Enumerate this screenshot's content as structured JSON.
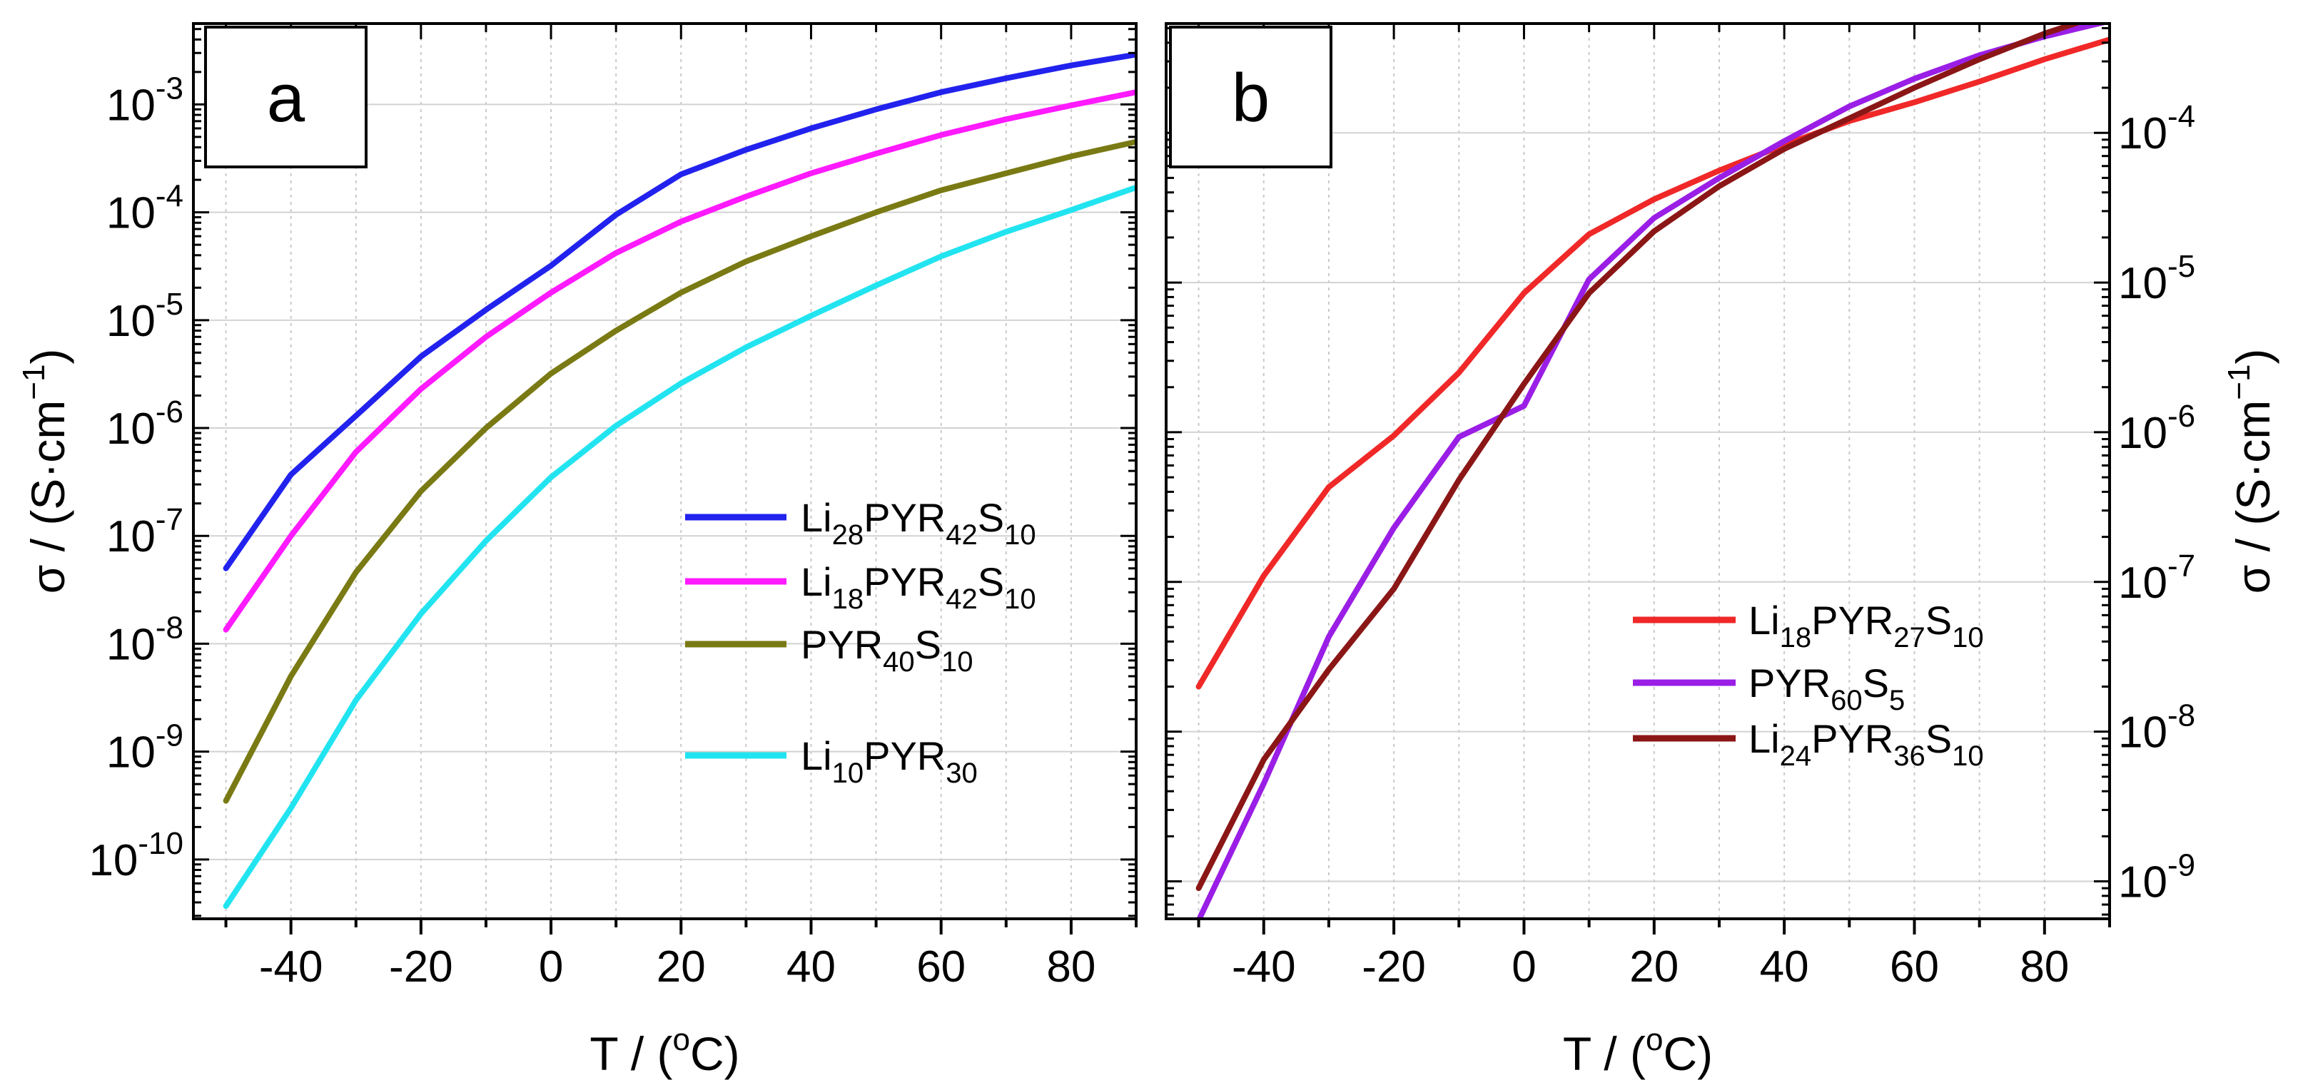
{
  "chart_data": [
    {
      "type": "line",
      "panel_label": "a",
      "xlabel_parts": [
        "T / (",
        "o",
        "C)"
      ],
      "ylabel_parts": [
        "σ / (S·cm",
        "−1",
        ")"
      ],
      "ylabel_side": "left",
      "y_scale": "log",
      "xlim": [
        -55,
        90
      ],
      "ylim_exponent": [
        -10.55,
        -2.25
      ],
      "x_ticks": [
        -40,
        -20,
        0,
        20,
        40,
        60,
        80
      ],
      "x_tick_labels": [
        "-40",
        "-20",
        "0",
        "20",
        "40",
        "60",
        "80"
      ],
      "y_tick_exponents": [
        -10,
        -9,
        -8,
        -7,
        -6,
        -5,
        -4,
        -3
      ],
      "y_tick_labels": [
        "-10",
        "-9",
        "-8",
        "-7",
        "-6",
        "-5",
        "-4",
        "-3"
      ],
      "legend_position": "center-right",
      "series": [
        {
          "name": "Li28PYR42S10",
          "name_parts": [
            [
              "Li",
              ""
            ],
            [
              "28",
              "sub"
            ],
            [
              "PYR",
              ""
            ],
            [
              "42",
              "sub"
            ],
            [
              "S",
              ""
            ],
            [
              "10",
              "sub"
            ]
          ],
          "color": "#2222ee",
          "x": [
            -50,
            -40,
            -30,
            -20,
            -10,
            0,
            10,
            20,
            30,
            40,
            50,
            60,
            70,
            80,
            90
          ],
          "y": [
            5e-08,
            3.7e-07,
            1.3e-06,
            4.6e-06,
            1.25e-05,
            3.2e-05,
            9.5e-05,
            0.000225,
            0.00038,
            0.0006,
            0.0009,
            0.0013,
            0.00175,
            0.0023,
            0.0029
          ]
        },
        {
          "name": "Li18PYR42S10",
          "name_parts": [
            [
              "Li",
              ""
            ],
            [
              "18",
              "sub"
            ],
            [
              "PYR",
              ""
            ],
            [
              "42",
              "sub"
            ],
            [
              "S",
              ""
            ],
            [
              "10",
              "sub"
            ]
          ],
          "color": "#ff1aff",
          "x": [
            -50,
            -40,
            -30,
            -20,
            -10,
            0,
            10,
            20,
            30,
            40,
            50,
            60,
            70,
            80,
            90
          ],
          "y": [
            1.35e-08,
            1e-07,
            6e-07,
            2.3e-06,
            7e-06,
            1.8e-05,
            4.2e-05,
            8.2e-05,
            0.00014,
            0.00023,
            0.00035,
            0.00052,
            0.00073,
            0.00098,
            0.0013
          ]
        },
        {
          "name": "PYR40S10",
          "name_parts": [
            [
              "PYR",
              ""
            ],
            [
              "40",
              "sub"
            ],
            [
              "S",
              ""
            ],
            [
              "10",
              "sub"
            ]
          ],
          "color": "#7a7a14",
          "x": [
            -50,
            -40,
            -30,
            -20,
            -10,
            0,
            10,
            20,
            30,
            40,
            50,
            60,
            70,
            80,
            90
          ],
          "y": [
            3.5e-10,
            5e-09,
            4.6e-08,
            2.6e-07,
            1e-06,
            3.2e-06,
            8e-06,
            1.8e-05,
            3.5e-05,
            6e-05,
            0.0001,
            0.00016,
            0.00023,
            0.00033,
            0.00045
          ]
        },
        {
          "name": "Li10PYR30",
          "name_parts": [
            [
              "Li",
              ""
            ],
            [
              "10",
              "sub"
            ],
            [
              "PYR",
              ""
            ],
            [
              "30",
              "sub"
            ]
          ],
          "color": "#22e4f0",
          "x": [
            -50,
            -40,
            -30,
            -20,
            -10,
            0,
            10,
            20,
            30,
            40,
            50,
            60,
            70,
            80,
            90
          ],
          "y": [
            3.7e-11,
            3e-10,
            3e-09,
            1.9e-08,
            9e-08,
            3.5e-07,
            1.05e-06,
            2.6e-06,
            5.6e-06,
            1.1e-05,
            2.1e-05,
            3.9e-05,
            6.6e-05,
            0.000105,
            0.00017
          ]
        }
      ]
    },
    {
      "type": "line",
      "panel_label": "b",
      "xlabel_parts": [
        "T / (",
        "o",
        "C)"
      ],
      "ylabel_parts": [
        "σ / (S·cm",
        "−1",
        ")"
      ],
      "ylabel_side": "right",
      "y_scale": "log",
      "xlim": [
        -55,
        90
      ],
      "ylim_exponent": [
        -9.25,
        -3.27
      ],
      "x_ticks": [
        -40,
        -20,
        0,
        20,
        40,
        60,
        80
      ],
      "x_tick_labels": [
        "-40",
        "-20",
        "0",
        "20",
        "40",
        "60",
        "80"
      ],
      "y_tick_exponents": [
        -9,
        -8,
        -7,
        -6,
        -5,
        -4
      ],
      "y_tick_labels": [
        "-9",
        "-8",
        "-7",
        "-6",
        "-5",
        "-4"
      ],
      "legend_position": "center-right",
      "series": [
        {
          "name": "Li18PYR27S10",
          "name_parts": [
            [
              "Li",
              ""
            ],
            [
              "18",
              "sub"
            ],
            [
              "PYR",
              ""
            ],
            [
              "27",
              "sub"
            ],
            [
              "S",
              ""
            ],
            [
              "10",
              "sub"
            ]
          ],
          "color": "#f02828",
          "x": [
            -50,
            -40,
            -30,
            -20,
            -10,
            0,
            10,
            20,
            30,
            40,
            50,
            60,
            70,
            80,
            90
          ],
          "y": [
            2e-08,
            1.1e-07,
            4.3e-07,
            9.5e-07,
            2.5e-06,
            8.5e-06,
            2.1e-05,
            3.6e-05,
            5.6e-05,
            8.3e-05,
            0.00012,
            0.00016,
            0.00022,
            0.00031,
            0.00042
          ]
        },
        {
          "name": "PYR60S5",
          "name_parts": [
            [
              "PYR",
              ""
            ],
            [
              "60",
              "sub"
            ],
            [
              "S",
              ""
            ],
            [
              "5",
              "sub"
            ]
          ],
          "color": "#9a1ee6",
          "x": [
            -50,
            -40,
            -30,
            -20,
            -10,
            0,
            10,
            20,
            30,
            40,
            50,
            60,
            70,
            80,
            90
          ],
          "y": [
            5.5e-10,
            4.5e-09,
            4.3e-08,
            2.3e-07,
            9.3e-07,
            1.5e-06,
            1.05e-05,
            2.7e-05,
            5e-05,
            8.8e-05,
            0.00015,
            0.00023,
            0.00033,
            0.00044,
            0.00056
          ]
        },
        {
          "name": "Li24PYR36S10",
          "name_parts": [
            [
              "Li",
              ""
            ],
            [
              "24",
              "sub"
            ],
            [
              "PYR",
              ""
            ],
            [
              "36",
              "sub"
            ],
            [
              "S",
              ""
            ],
            [
              "10",
              "sub"
            ]
          ],
          "color": "#8b1616",
          "x": [
            -50,
            -40,
            -30,
            -20,
            -10,
            0,
            10,
            20,
            30,
            40,
            50,
            60,
            70,
            80,
            90
          ],
          "y": [
            9e-10,
            6.5e-09,
            2.6e-08,
            9e-08,
            4.8e-07,
            2.1e-06,
            8.5e-06,
            2.2e-05,
            4.4e-05,
            7.8e-05,
            0.000125,
            0.0002,
            0.00031,
            0.00046,
            0.00064
          ]
        }
      ]
    }
  ]
}
